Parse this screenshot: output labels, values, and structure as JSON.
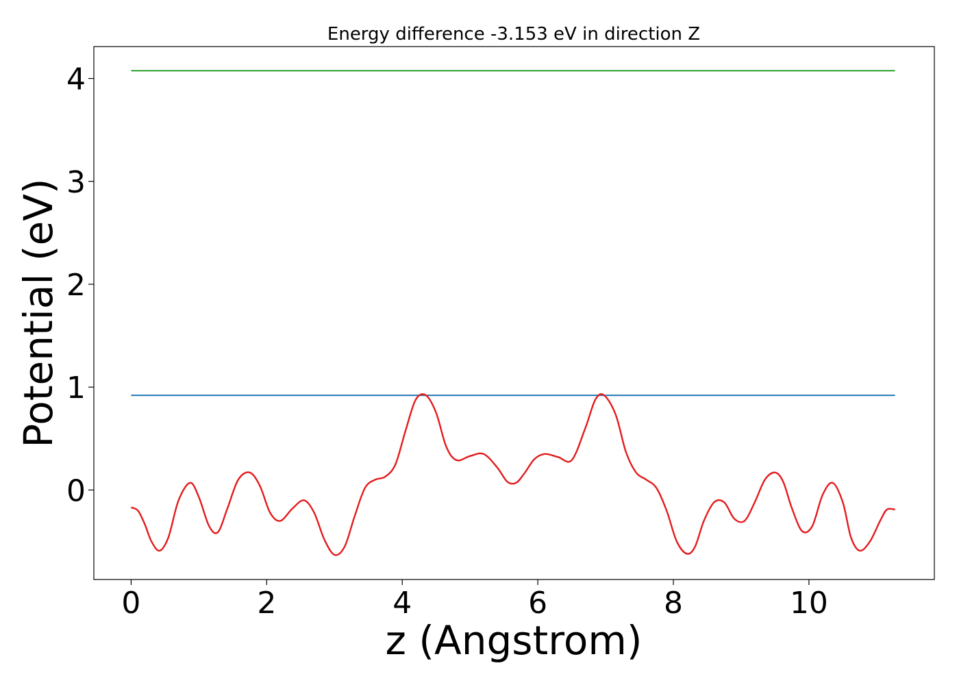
{
  "chart_data": {
    "type": "line",
    "title": "Energy difference -3.153 eV in direction Z",
    "xlabel": "z (Angstrom)",
    "ylabel": "Potential (eV)",
    "xlim": [
      -0.55,
      11.85
    ],
    "ylim": [
      -0.87,
      4.31
    ],
    "xticks": [
      0,
      2,
      4,
      6,
      8,
      10
    ],
    "yticks": [
      0,
      1,
      2,
      3,
      4
    ],
    "grid": false,
    "legend": "none",
    "series": [
      {
        "color": "#1f77b4",
        "x": [
          0,
          11.27
        ],
        "y": [
          0.92,
          0.92
        ]
      },
      {
        "color": "#2ca02c",
        "x": [
          0,
          11.27
        ],
        "y": [
          4.075,
          4.075
        ]
      },
      {
        "color": "#e41a1c",
        "x": [
          0,
          0.1,
          0.2,
          0.3,
          0.42,
          0.55,
          0.7,
          0.87,
          1.0,
          1.15,
          1.28,
          1.42,
          1.58,
          1.75,
          1.9,
          2.05,
          2.2,
          2.38,
          2.55,
          2.7,
          2.85,
          3.0,
          3.15,
          3.3,
          3.45,
          3.6,
          3.75,
          3.9,
          4.05,
          4.2,
          4.35,
          4.5,
          4.65,
          4.8,
          5.0,
          5.2,
          5.4,
          5.55,
          5.68,
          5.8,
          5.95,
          6.1,
          6.3,
          6.5,
          6.7,
          6.85,
          6.98,
          7.15,
          7.3,
          7.45,
          7.6,
          7.75,
          7.9,
          8.05,
          8.2,
          8.32,
          8.45,
          8.6,
          8.75,
          8.9,
          9.05,
          9.2,
          9.35,
          9.5,
          9.62,
          9.75,
          9.9,
          10.05,
          10.2,
          10.35,
          10.5,
          10.62,
          10.75,
          10.9,
          11.05,
          11.15,
          11.27
        ],
        "y": [
          -0.17,
          -0.2,
          -0.33,
          -0.5,
          -0.59,
          -0.46,
          -0.1,
          0.07,
          -0.07,
          -0.35,
          -0.41,
          -0.18,
          0.1,
          0.17,
          0.04,
          -0.22,
          -0.3,
          -0.18,
          -0.1,
          -0.22,
          -0.48,
          -0.63,
          -0.55,
          -0.25,
          0.02,
          0.1,
          0.13,
          0.25,
          0.58,
          0.88,
          0.92,
          0.75,
          0.42,
          0.29,
          0.33,
          0.35,
          0.22,
          0.08,
          0.07,
          0.16,
          0.3,
          0.35,
          0.32,
          0.29,
          0.6,
          0.88,
          0.92,
          0.73,
          0.37,
          0.17,
          0.1,
          0.02,
          -0.2,
          -0.5,
          -0.62,
          -0.55,
          -0.3,
          -0.12,
          -0.12,
          -0.28,
          -0.3,
          -0.12,
          0.1,
          0.17,
          0.08,
          -0.18,
          -0.4,
          -0.35,
          -0.05,
          0.07,
          -0.12,
          -0.46,
          -0.59,
          -0.5,
          -0.3,
          -0.19,
          -0.19
        ]
      }
    ]
  }
}
